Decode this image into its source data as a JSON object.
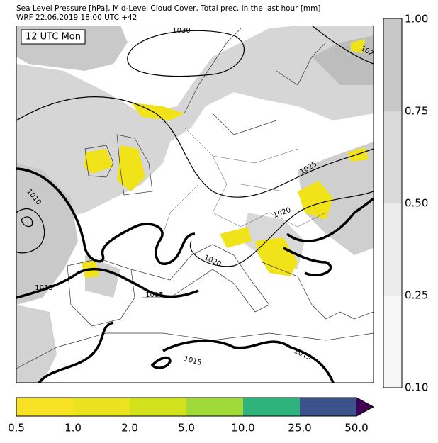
{
  "header": {
    "line1": "Sea Level Pressure [hPa], Mid-Level Cloud Cover, Total prec. in the last hour [mm]",
    "line2": "WRF 22.06.2019 18:00 UTC +42"
  },
  "map": {
    "time_label": "12 UTC Mon",
    "contour_labels": [
      "1030",
      "1025",
      "1020",
      "1020",
      "1015",
      "1015",
      "1015",
      "1015",
      "1010",
      "102"
    ]
  },
  "cloud_colorbar": {
    "ticks": [
      "1.00",
      "0.75",
      "0.50",
      "0.25",
      "0.10"
    ]
  },
  "precip_colorbar": {
    "ticks": [
      "0.5",
      "1.0",
      "2.0",
      "5.0",
      "10.0",
      "25.0",
      "50.0"
    ]
  }
}
